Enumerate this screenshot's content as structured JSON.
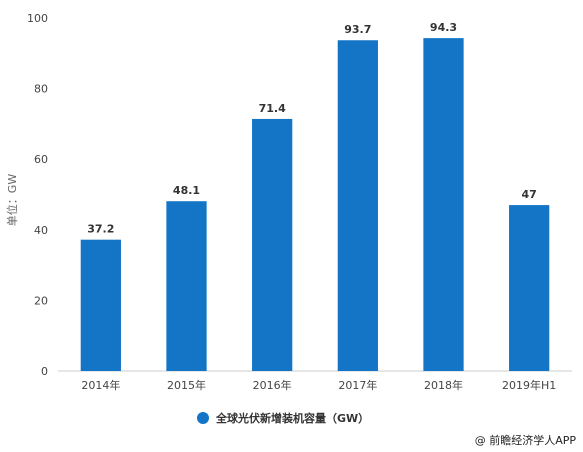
{
  "chart_data": {
    "type": "bar",
    "categories": [
      "2014年",
      "2015年",
      "2016年",
      "2017年",
      "2018年",
      "2019年H1"
    ],
    "series": [
      {
        "name": "全球光伏新增装机容量（GW）",
        "values": [
          37.2,
          48.1,
          71.4,
          93.7,
          94.3,
          47
        ]
      }
    ],
    "data_labels": [
      "37.2",
      "48.1",
      "71.4",
      "93.7",
      "94.3",
      "47"
    ],
    "title": "",
    "xlabel": "",
    "ylabel": "单位：GW",
    "ylim": [
      0,
      100
    ],
    "yticks": [
      0,
      20,
      40,
      60,
      80,
      100
    ],
    "grid": false,
    "legend": "bottom",
    "bar_color": "#1475c6"
  },
  "source": "@ 前瞻经济学人APP"
}
